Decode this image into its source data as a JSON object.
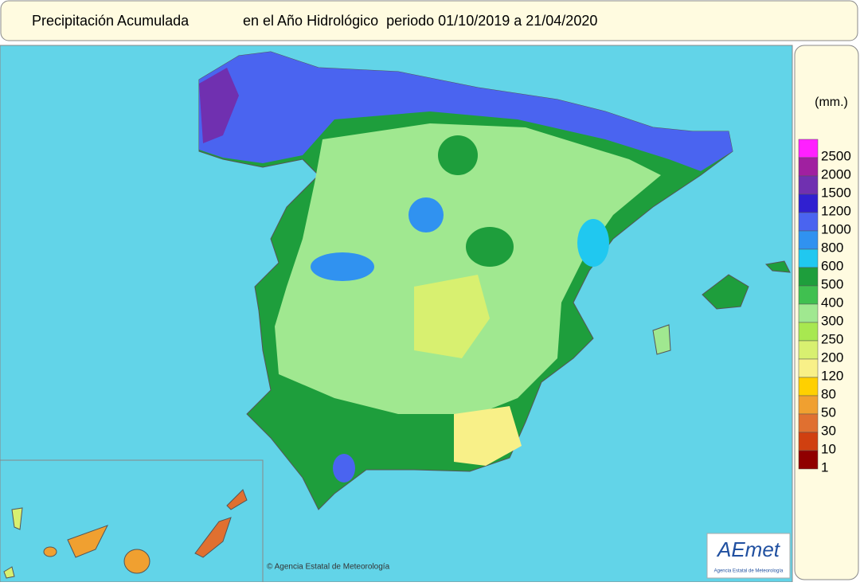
{
  "header": {
    "title": "Precipitación Acumulada",
    "subtitle": "en el Año Hidrológico  periodo 01/10/2019 a 21/04/2020"
  },
  "legend": {
    "unit": "(mm.)",
    "items": [
      {
        "value": 2500,
        "color": "#ff20ff"
      },
      {
        "value": 2000,
        "color": "#a020a0"
      },
      {
        "value": 1500,
        "color": "#7030b0"
      },
      {
        "value": 1200,
        "color": "#3020d0"
      },
      {
        "value": 1000,
        "color": "#4a64f0"
      },
      {
        "value": 800,
        "color": "#3092f0"
      },
      {
        "value": 600,
        "color": "#20c8f0"
      },
      {
        "value": 500,
        "color": "#1e9e3c"
      },
      {
        "value": 400,
        "color": "#40c050"
      },
      {
        "value": 300,
        "color": "#a0e890"
      },
      {
        "value": 250,
        "color": "#a8e850"
      },
      {
        "value": 200,
        "color": "#d8f070"
      },
      {
        "value": 120,
        "color": "#f8f088"
      },
      {
        "value": 80,
        "color": "#ffd000"
      },
      {
        "value": 50,
        "color": "#f0a030"
      },
      {
        "value": 30,
        "color": "#e07030"
      },
      {
        "value": 10,
        "color": "#d04010"
      },
      {
        "value": 1,
        "color": "#900000"
      }
    ]
  },
  "credit": "© Agencia Estatal de Meteorología",
  "logo": {
    "name": "AEmet",
    "caption": "Agencia Estatal de Meteorología"
  }
}
